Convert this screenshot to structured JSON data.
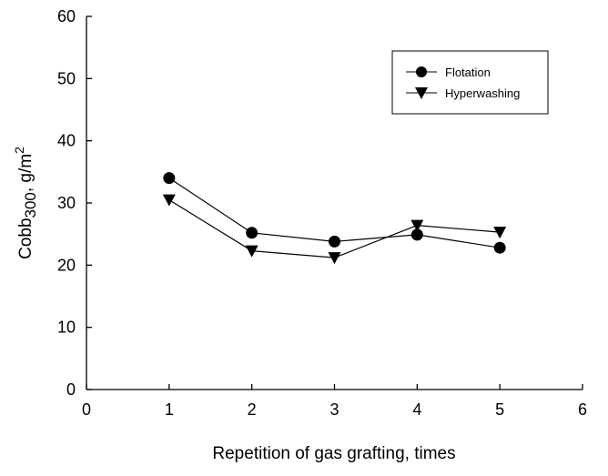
{
  "chart_data": {
    "type": "line",
    "title": "",
    "xlabel": "Repetition of gas grafting, times",
    "ylabel_main": "Cobb",
    "ylabel_sub": "300",
    "ylabel_unit": ", g/m",
    "ylabel_sup": "2",
    "xlim": [
      0,
      6
    ],
    "ylim": [
      0,
      60
    ],
    "xticks": [
      "0",
      "1",
      "2",
      "3",
      "4",
      "5",
      "6"
    ],
    "yticks": [
      "0",
      "10",
      "20",
      "30",
      "40",
      "50",
      "60"
    ],
    "x": [
      1,
      2,
      3,
      4,
      5
    ],
    "series": [
      {
        "name": "Flotation",
        "marker": "circle",
        "values": [
          34,
          25.2,
          23.8,
          24.9,
          22.8
        ]
      },
      {
        "name": "Hyperwashing",
        "marker": "triangle-down",
        "values": [
          30.5,
          22.3,
          21.2,
          26.4,
          25.3
        ]
      }
    ],
    "grid": false,
    "legend_position": "top-right"
  }
}
